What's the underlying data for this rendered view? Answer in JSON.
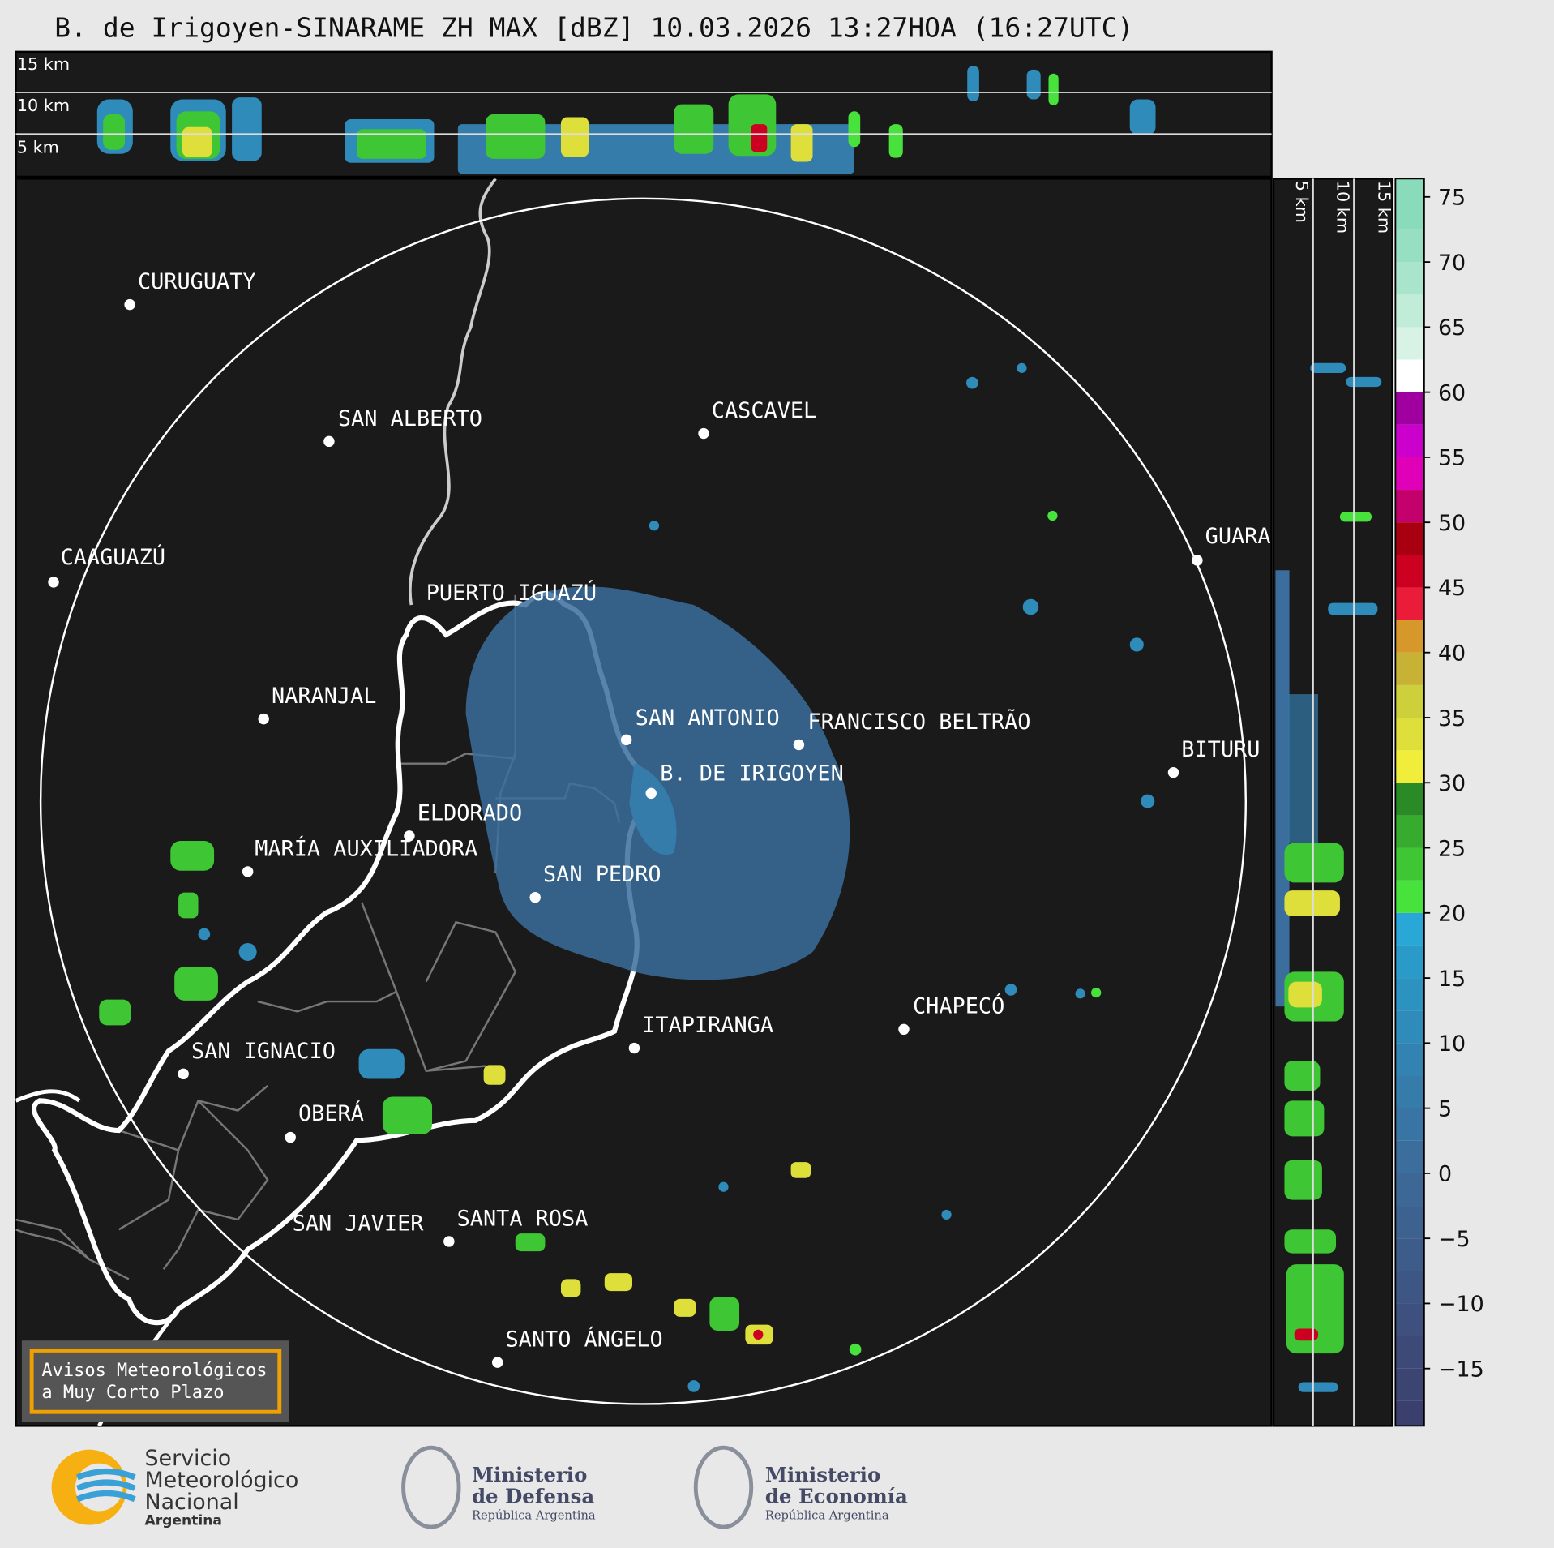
{
  "title": "B. de Irigoyen-SINARAME ZH MAX [dBZ] 10.03.2026 13:27HOA (16:27UTC)",
  "profile_labels": {
    "top": [
      "15 km",
      "10 km",
      "5 km"
    ],
    "side": [
      "5 km",
      "10 km",
      "15 km"
    ]
  },
  "cities": [
    "CURUGUATY",
    "SAN ALBERTO",
    "CASCAVEL",
    "CAAGUAZÚ",
    "GUARA",
    "PUERTO IGUAZÚ",
    "NARANJAL",
    "SAN ANTONIO",
    "FRANCISCO BELTRÃO",
    "B. DE IRIGOYEN",
    "BITURU",
    "ELDORADO",
    "MARÍA AUXILIADORA",
    "SAN PEDRO",
    "CHAPECÓ",
    "ITAPIRANGA",
    "SAN IGNACIO",
    "OBERÁ",
    "SAN JAVIER",
    "SANTA ROSA",
    "SANTO ÁNGELO"
  ],
  "colorbar": {
    "lim": [
      -19.4,
      76.4
    ],
    "ticks": [
      {
        "value": -15,
        "label": "−15"
      },
      {
        "value": -10,
        "label": "−10"
      },
      {
        "value": -5,
        "label": "−5"
      },
      0,
      5,
      10,
      15,
      20,
      25,
      30,
      35,
      40,
      45,
      50,
      55,
      60,
      65,
      70,
      75
    ],
    "stops": [
      {
        "value": -19.4,
        "color": "#3b3f6e"
      },
      {
        "value": -17.5,
        "color": "#3c4472"
      },
      {
        "value": -15,
        "color": "#3d4a78"
      },
      {
        "value": -12.5,
        "color": "#3e507e"
      },
      {
        "value": -10,
        "color": "#3e5684"
      },
      {
        "value": -7.5,
        "color": "#3e5c8a"
      },
      {
        "value": -5,
        "color": "#3e6290"
      },
      {
        "value": -2.5,
        "color": "#3d6896"
      },
      {
        "value": 0,
        "color": "#3b6e9c"
      },
      {
        "value": 2.5,
        "color": "#3875a4"
      },
      {
        "value": 5,
        "color": "#357cab"
      },
      {
        "value": 7.5,
        "color": "#3283b2"
      },
      {
        "value": 10,
        "color": "#2f8bb9"
      },
      {
        "value": 12.5,
        "color": "#2c93c0"
      },
      {
        "value": 15,
        "color": "#2a9bc8"
      },
      {
        "value": 17.5,
        "color": "#29a8d8"
      },
      {
        "value": 20,
        "color": "#48e23c"
      },
      {
        "value": 22.5,
        "color": "#3ec634"
      },
      {
        "value": 25,
        "color": "#36ab2e"
      },
      {
        "value": 27.5,
        "color": "#2a8a25"
      },
      {
        "value": 30,
        "color": "#f0ee3a"
      },
      {
        "value": 32.5,
        "color": "#dedf3a"
      },
      {
        "value": 35,
        "color": "#cdd03a"
      },
      {
        "value": 37.5,
        "color": "#c8b236"
      },
      {
        "value": 40,
        "color": "#d6982a"
      },
      {
        "value": 42.5,
        "color": "#ea1c3a"
      },
      {
        "value": 45,
        "color": "#cc0020"
      },
      {
        "value": 47.5,
        "color": "#a80010"
      },
      {
        "value": 50,
        "color": "#c4006c"
      },
      {
        "value": 52.5,
        "color": "#e000b8"
      },
      {
        "value": 55,
        "color": "#cc00cc"
      },
      {
        "value": 57.5,
        "color": "#a000a0"
      },
      {
        "value": 60,
        "color": "#ffffff"
      },
      {
        "value": 62.5,
        "color": "#d8f3e6"
      },
      {
        "value": 65,
        "color": "#c0ecd8"
      },
      {
        "value": 67.5,
        "color": "#a9e5cc"
      },
      {
        "value": 70,
        "color": "#97dfc3"
      },
      {
        "value": 72.5,
        "color": "#8adbbc"
      }
    ]
  },
  "notice": [
    "Avisos Meteorológicos",
    "a Muy Corto Plazo"
  ],
  "footer": {
    "smn": [
      "Servicio",
      "Meteorológico",
      "Nacional",
      "Argentina"
    ],
    "defensa": [
      "Ministerio",
      "de Defensa",
      "República Argentina"
    ],
    "economia": [
      "Ministerio",
      "de Economía",
      "República Argentina"
    ]
  }
}
